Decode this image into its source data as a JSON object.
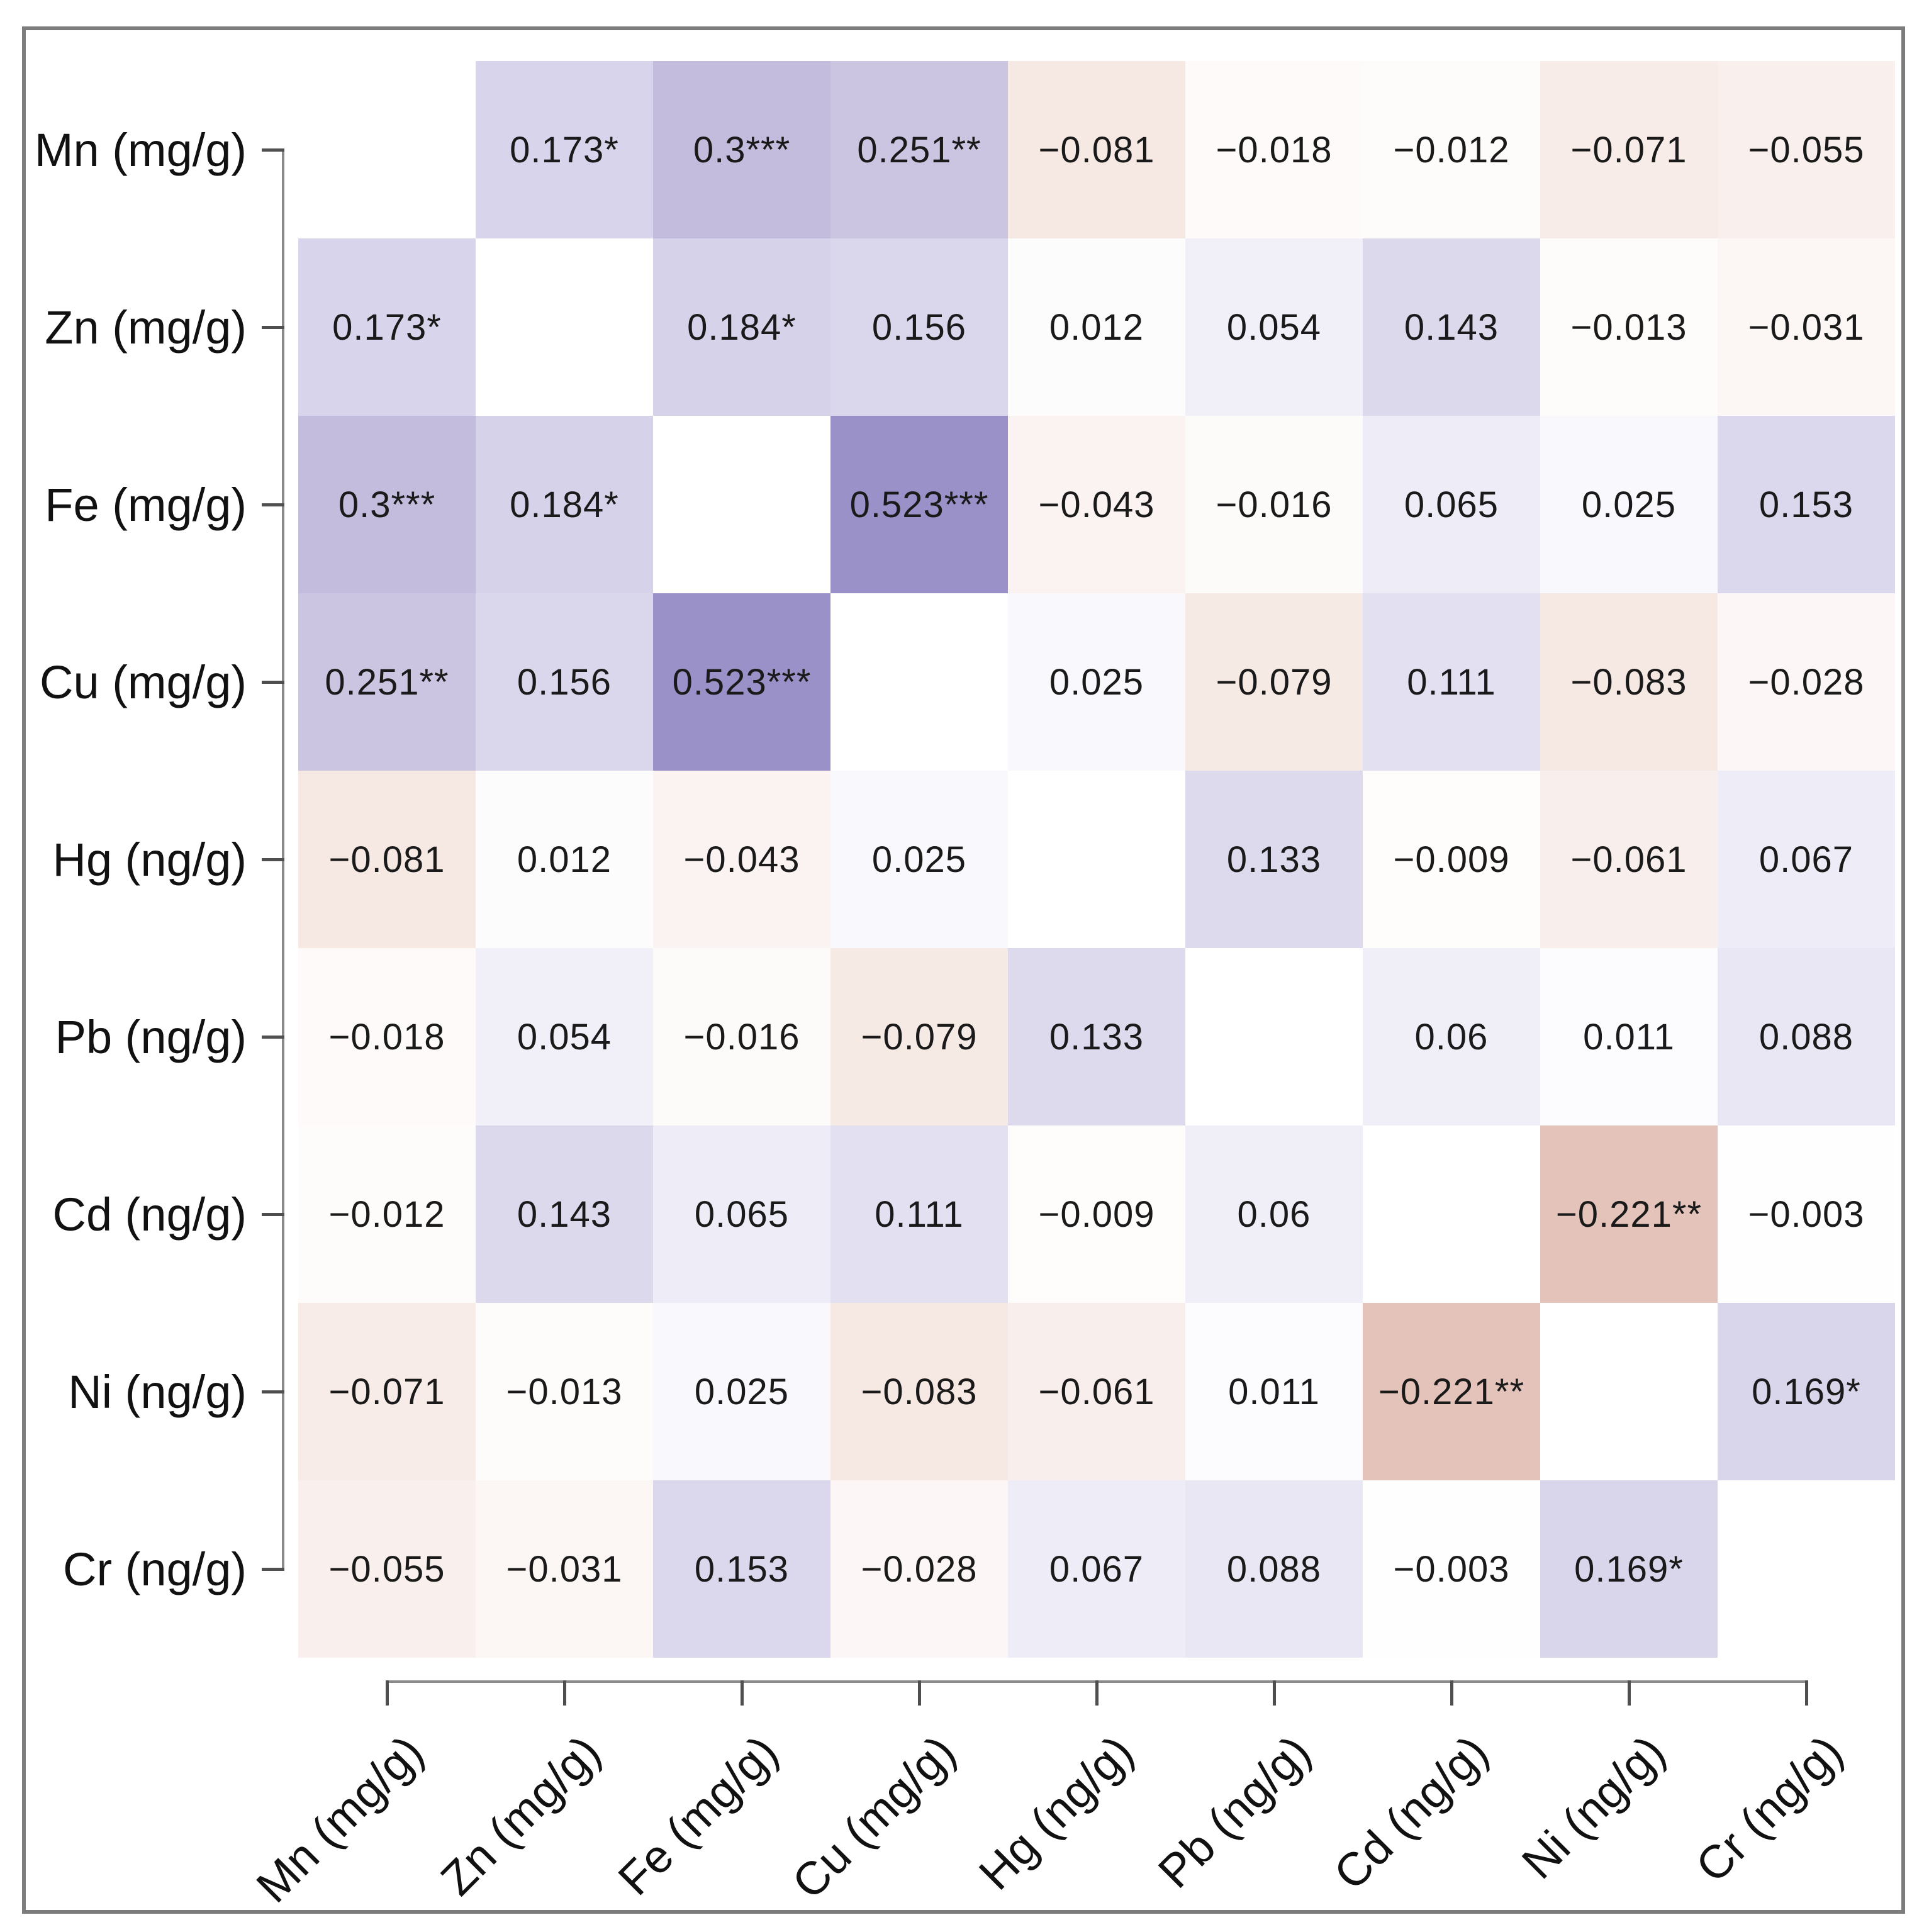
{
  "chart_data": {
    "type": "heatmap",
    "subtype": "correlation-matrix",
    "title": "",
    "variables": [
      "Mn (mg/g)",
      "Zn (mg/g)",
      "Fe (mg/g)",
      "Cu (mg/g)",
      "Hg (ng/g)",
      "Pb (ng/g)",
      "Cd (ng/g)",
      "Ni (ng/g)",
      "Cr (ng/g)"
    ],
    "matrix_display": [
      [
        "",
        "0.173*",
        "0.3***",
        "0.251**",
        "−0.081",
        "−0.018",
        "−0.012",
        "−0.071",
        "−0.055"
      ],
      [
        "0.173*",
        "",
        "0.184*",
        "0.156",
        "0.012",
        "0.054",
        "0.143",
        "−0.013",
        "−0.031"
      ],
      [
        "0.3***",
        "0.184*",
        "",
        "0.523***",
        "−0.043",
        "−0.016",
        "0.065",
        "0.025",
        "0.153"
      ],
      [
        "0.251**",
        "0.156",
        "0.523***",
        "",
        "0.025",
        "−0.079",
        "0.111",
        "−0.083",
        "−0.028"
      ],
      [
        "−0.081",
        "0.012",
        "−0.043",
        "0.025",
        "",
        "0.133",
        "−0.009",
        "−0.061",
        "0.067"
      ],
      [
        "−0.018",
        "0.054",
        "−0.016",
        "−0.079",
        "0.133",
        "",
        "0.06",
        "0.011",
        "0.088"
      ],
      [
        "−0.012",
        "0.143",
        "0.065",
        "0.111",
        "−0.009",
        "0.06",
        "",
        "−0.221**",
        "−0.003"
      ],
      [
        "−0.071",
        "−0.013",
        "0.025",
        "−0.083",
        "−0.061",
        "0.011",
        "−0.221**",
        "",
        "0.169*"
      ],
      [
        "−0.055",
        "−0.031",
        "0.153",
        "−0.028",
        "0.067",
        "0.088",
        "−0.003",
        "0.169*",
        ""
      ]
    ],
    "matrix_values": [
      [
        null,
        0.173,
        0.3,
        0.251,
        -0.081,
        -0.018,
        -0.012,
        -0.071,
        -0.055
      ],
      [
        0.173,
        null,
        0.184,
        0.156,
        0.012,
        0.054,
        0.143,
        -0.013,
        -0.031
      ],
      [
        0.3,
        0.184,
        null,
        0.523,
        -0.043,
        -0.016,
        0.065,
        0.025,
        0.153
      ],
      [
        0.251,
        0.156,
        0.523,
        null,
        0.025,
        -0.079,
        0.111,
        -0.083,
        -0.028
      ],
      [
        -0.081,
        0.012,
        -0.043,
        0.025,
        null,
        0.133,
        -0.009,
        -0.061,
        0.067
      ],
      [
        -0.018,
        0.054,
        -0.016,
        -0.079,
        0.133,
        null,
        0.06,
        0.011,
        0.088
      ],
      [
        -0.012,
        0.143,
        0.065,
        0.111,
        -0.009,
        0.06,
        null,
        -0.221,
        -0.003
      ],
      [
        -0.071,
        -0.013,
        0.025,
        -0.083,
        -0.061,
        0.011,
        -0.221,
        null,
        0.169
      ],
      [
        -0.055,
        -0.031,
        0.153,
        -0.028,
        0.067,
        0.088,
        -0.003,
        0.169,
        null
      ]
    ],
    "legend": "none",
    "grid": "off",
    "x_tick_label_rotation_deg": 45,
    "colormap": {
      "positive_anchors": [
        [
          0.0,
          [
            255,
            255,
            255
          ]
        ],
        [
          0.133,
          [
            221,
            218,
            238
          ]
        ],
        [
          0.173,
          [
            216,
            212,
            235
          ]
        ],
        [
          0.3,
          [
            195,
            188,
            221
          ]
        ],
        [
          0.523,
          [
            154,
            145,
            200
          ]
        ],
        [
          1.0,
          [
            66,
            53,
            155
          ]
        ]
      ],
      "negative_anchors": [
        [
          0.0,
          [
            255,
            255,
            255
          ]
        ],
        [
          0.081,
          [
            246,
            233,
            228
          ]
        ],
        [
          0.221,
          [
            228,
            195,
            186
          ]
        ],
        [
          1.0,
          [
            128,
            48,
            32
          ]
        ]
      ],
      "diagonal_cell": "#ffffff"
    },
    "colors": {
      "border": "#7c7c7c",
      "axis_line": "#8a8a8a",
      "tick": "#4f4f4f",
      "cell_text": "#1a1a1a",
      "label_text": "#111111",
      "background": "#ffffff"
    }
  }
}
